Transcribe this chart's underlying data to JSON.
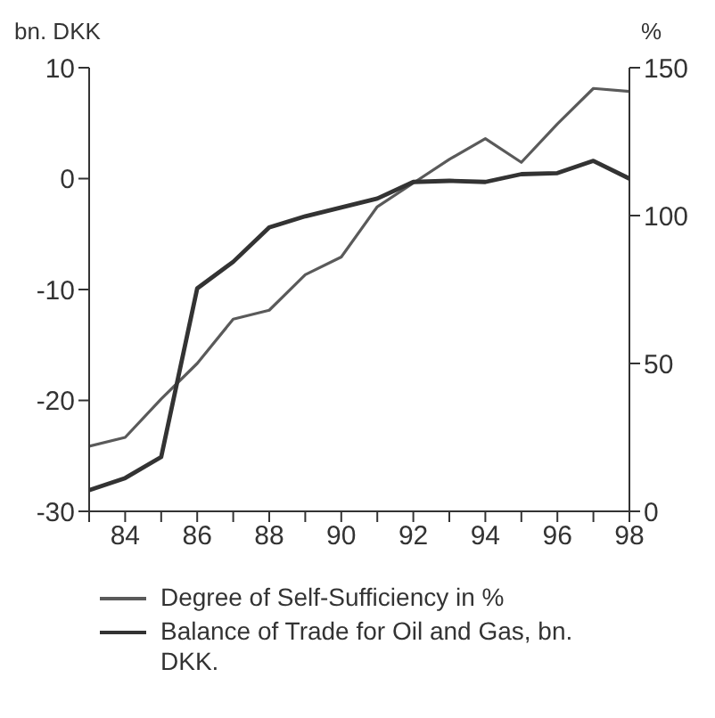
{
  "chart_data": {
    "type": "line",
    "ylabel": "bn. DKK",
    "y2label": "%",
    "x": [
      83,
      84,
      85,
      86,
      87,
      88,
      89,
      90,
      91,
      92,
      93,
      94,
      95,
      96,
      97,
      98
    ],
    "series": [
      {
        "name": "Degree of Self-Sufficiency in %",
        "color": "#5a5a5a",
        "axis": "y2",
        "values": [
          22,
          25,
          38,
          50,
          65,
          68,
          80,
          86,
          103,
          111,
          119,
          126,
          118,
          131,
          143,
          142
        ]
      },
      {
        "name": "Balance of Trade for Oil and Gas, bn. DKK.",
        "color": "#333333",
        "values": [
          -28.1,
          -27,
          -25.1,
          -9.9,
          -7.5,
          -4.4,
          -3.4,
          -2.6,
          -1.8,
          -0.3,
          -0.2,
          -0.3,
          0.4,
          0.5,
          1.6,
          0
        ]
      }
    ],
    "xlim": [
      83,
      98
    ],
    "xticks": [
      {
        "value": 83,
        "label": null
      },
      84,
      {
        "value": 85,
        "label": null
      },
      86,
      {
        "value": 87,
        "label": null
      },
      88,
      {
        "value": 89,
        "label": null
      },
      90,
      {
        "value": 91,
        "label": null
      },
      92,
      {
        "value": 93,
        "label": null
      },
      94,
      {
        "value": 95,
        "label": null
      },
      96,
      {
        "value": 97,
        "label": null
      },
      98
    ],
    "ylim": [
      -30,
      10
    ],
    "yticks": [
      -30,
      -20,
      -10,
      0,
      10
    ],
    "y2lim": [
      0,
      150
    ],
    "y2ticks": [
      0,
      50,
      100,
      150
    ],
    "grid": false,
    "legend": "bottom",
    "marker": "none",
    "line_style": "solid"
  }
}
